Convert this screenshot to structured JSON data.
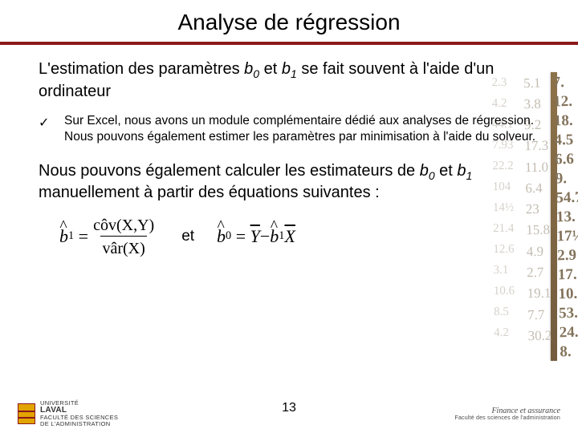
{
  "title": "Analyse de régression",
  "divider_color": "#8b1a1a",
  "para1": {
    "pre": "L'estimation des paramètres ",
    "b0": "b",
    "s0": "0",
    "mid": " et ",
    "b1": "b",
    "s1": "1",
    "post": " se fait souvent à l'aide d'un ordinateur"
  },
  "bullet": {
    "mark": "✓",
    "text": "Sur Excel, nous avons un module complémentaire dédié aux analyses de régression. Nous pouvons également estimer les paramètres par minimisation à l'aide du solveur."
  },
  "para2": {
    "pre": "Nous pouvons également calculer les estimateurs de ",
    "b0": "b",
    "s0": "0",
    "mid": " et ",
    "b1": "b",
    "s1": "1",
    "post": " manuellement à partir des équations suivantes :"
  },
  "eq": {
    "connector": "et",
    "eq1_b": "b",
    "eq1_sub": "1",
    "eq": "=",
    "cov": "côv",
    "xy": "(X,Y)",
    "var": "vâr",
    "x": "(X)",
    "eq2_b": "b",
    "eq2_sub": "0",
    "Ybar": "Y",
    "minus": " − ",
    "eq2_b1": "b",
    "eq2_b1sub": "1",
    "Xbar": "X"
  },
  "footer": {
    "page": "13",
    "univ_line1": "Université",
    "univ_line2": "Laval",
    "fac_line": "Faculté des sciences",
    "fac_line2": "de l'administration",
    "right1": "Finance et assurance",
    "right2": "Faculté des sciences de l'administration"
  },
  "bg_numbers": {
    "col1": [
      "2.3",
      "4.2",
      "44.1",
      "7.93",
      "22.2",
      "104",
      "14½",
      "21.4",
      "12.6",
      "3.1",
      "10.6",
      "8.5",
      "4.2",
      "",
      ""
    ],
    "col2": [
      "5.1",
      "3.8",
      "9.2",
      "17.3",
      "11.0",
      "6.4",
      "23",
      "15.8",
      "4.9",
      "2.7",
      "19.1",
      "7.7",
      "30.2",
      "",
      ""
    ],
    "col3": [
      "7.",
      "12.",
      "18.",
      "4.5",
      "6.6",
      "9.",
      "54.7",
      "13.",
      "17½",
      "2.9",
      "17.",
      "10.",
      "53.",
      "24.",
      "8."
    ]
  }
}
